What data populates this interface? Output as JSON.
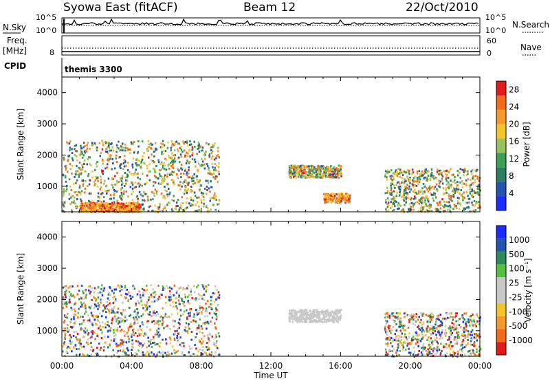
{
  "header": {
    "station": "Syowa East (fitACF)",
    "beam": "Beam 12",
    "date": "22/Oct/2010"
  },
  "nsky_panel": {
    "left_label": "N.Sky",
    "right_label": "N.Search",
    "left_ticks": [
      "10^5",
      "10^0"
    ],
    "right_ticks": [
      "10^5",
      "10^0"
    ]
  },
  "freq_panel": {
    "left_label_line1": "Freq.",
    "left_label_line2": "[MHz]",
    "right_label": "Nave",
    "left_ticks": [
      "8"
    ],
    "right_ticks": [
      "60",
      "0"
    ]
  },
  "cpid": {
    "label": "CPID",
    "value": "themis 3300"
  },
  "colors": {
    "power_scale": [
      "#1a2cff",
      "#2255b0",
      "#2a7d60",
      "#3a9e55",
      "#9ac25a",
      "#f2c52a",
      "#f59a2a",
      "#f26a1a",
      "#e21a1a"
    ],
    "velocity_scale": [
      "#e21a1a",
      "#f26a1a",
      "#f59a2a",
      "#f2c52a",
      "#c8c8c8",
      "#c8c8c8",
      "#55c040",
      "#2f8a5a",
      "#2255b0",
      "#1a2cff"
    ]
  },
  "chart_data": [
    {
      "type": "heatmap",
      "title": "",
      "xlabel": "Time UT",
      "ylabel": "Slant Range [km]",
      "x_tick_labels": [
        "00:00",
        "04:00",
        "08:00",
        "12:00",
        "16:00",
        "20:00",
        "00:00"
      ],
      "y_tick_labels": [
        "1000",
        "2000",
        "3000",
        "4000"
      ],
      "xlim_hours": [
        0,
        24
      ],
      "ylim_km": [
        180,
        4500
      ],
      "colorbar": {
        "label": "Power [dB]",
        "tick_labels": [
          "4",
          "8",
          "12",
          "16",
          "20",
          "24",
          "28"
        ],
        "range": [
          0,
          30
        ]
      },
      "echo_regions": [
        {
          "time_start": "00:00",
          "time_end": "09:00",
          "range_km": [
            200,
            2500
          ],
          "dominant": "8–24 dB"
        },
        {
          "time_start": "01:00",
          "time_end": "04:30",
          "range_km": [
            200,
            500
          ],
          "dominant": "24–30 dB"
        },
        {
          "time_start": "13:00",
          "time_end": "16:00",
          "range_km": [
            1300,
            1700
          ],
          "dominant": "12–24 dB"
        },
        {
          "time_start": "15:00",
          "time_end": "16:30",
          "range_km": [
            500,
            800
          ],
          "dominant": "24–30 dB"
        },
        {
          "time_start": "18:30",
          "time_end": "24:00",
          "range_km": [
            200,
            1600
          ],
          "dominant": "8–28 dB"
        }
      ]
    },
    {
      "type": "heatmap",
      "title": "",
      "xlabel": "Time UT",
      "ylabel": "Slant Range [km]",
      "x_tick_labels": [
        "00:00",
        "04:00",
        "08:00",
        "12:00",
        "16:00",
        "20:00",
        "00:00"
      ],
      "y_tick_labels": [
        "1000",
        "2000",
        "3000",
        "4000"
      ],
      "xlim_hours": [
        0,
        24
      ],
      "ylim_km": [
        180,
        4500
      ],
      "colorbar": {
        "label": "Velocity [m s⁻¹]",
        "tick_labels": [
          "1000",
          "500",
          "100",
          "25",
          "-25",
          "-100",
          "-500",
          "-1000"
        ],
        "range": [
          -1000,
          1000
        ]
      },
      "echo_regions": [
        {
          "time_start": "00:00",
          "time_end": "09:00",
          "range_km": [
            200,
            2500
          ],
          "dominant": "-100 to -500 m/s"
        },
        {
          "time_start": "13:00",
          "time_end": "16:00",
          "range_km": [
            1300,
            1700
          ],
          "dominant": "-25 to 25 m/s"
        },
        {
          "time_start": "18:30",
          "time_end": "24:00",
          "range_km": [
            200,
            1600
          ],
          "dominant": "-100 to 500 m/s"
        }
      ]
    }
  ]
}
